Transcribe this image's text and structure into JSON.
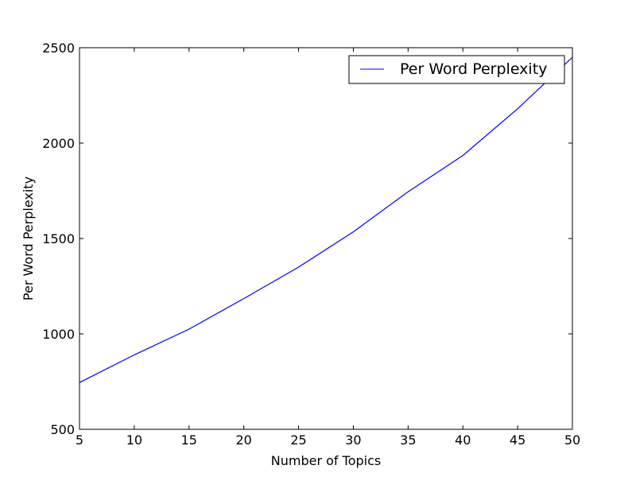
{
  "chart_data": {
    "type": "line",
    "title": "",
    "xlabel": "Number of Topics",
    "ylabel": "Per Word Perplexity",
    "xlim": [
      5,
      50
    ],
    "ylim": [
      500,
      2500
    ],
    "xticks": [
      5,
      10,
      15,
      20,
      25,
      30,
      35,
      40,
      45,
      50
    ],
    "yticks": [
      500,
      1000,
      1500,
      2000,
      2500
    ],
    "grid": false,
    "legend_position": "top-right",
    "series": [
      {
        "name": "Per Word Perplexity",
        "color": "#0000ff",
        "x": [
          5,
          10,
          15,
          20,
          25,
          30,
          35,
          40,
          45,
          50
        ],
        "y": [
          745,
          890,
          1025,
          1185,
          1350,
          1535,
          1745,
          1935,
          2180,
          2450
        ]
      }
    ]
  }
}
